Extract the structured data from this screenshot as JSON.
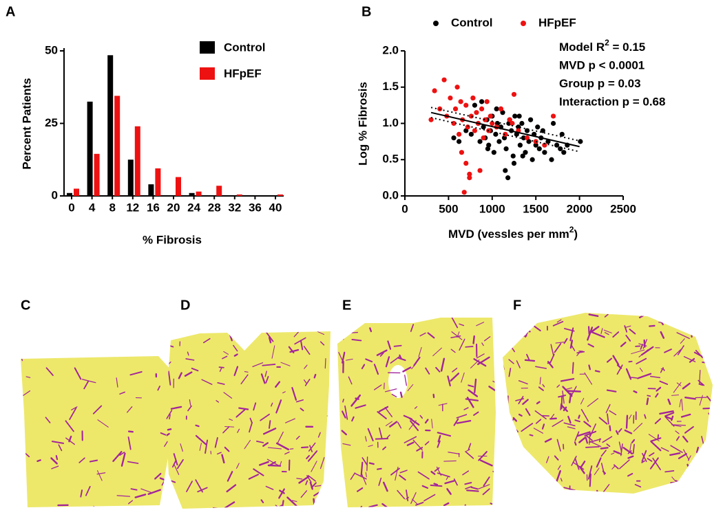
{
  "chart_data": [
    {
      "type": "bar",
      "label": "A",
      "xlabel": "% Fibrosis",
      "ylabel": "Percent Patients",
      "categories": [
        "0",
        "4",
        "8",
        "12",
        "16",
        "20",
        "24",
        "28",
        "32",
        "36",
        "40"
      ],
      "series": [
        {
          "name": "Control",
          "color": "#000000",
          "values": [
            1,
            32.5,
            48.5,
            12.5,
            4,
            0,
            1,
            0,
            0,
            0,
            0
          ]
        },
        {
          "name": "HFpEF",
          "color": "#ee1111",
          "values": [
            2.5,
            14.5,
            34.5,
            24,
            9.5,
            6.5,
            1.5,
            3.5,
            0.5,
            0,
            0.5
          ]
        }
      ],
      "ylim": [
        0,
        50
      ],
      "yticks": [
        0,
        25,
        50
      ],
      "legend": "top-right"
    },
    {
      "type": "scatter",
      "label": "B",
      "ylabel": "Log % Fibrosis",
      "xlabel": {
        "text": "MVD (vessles per mm",
        "sup": "2",
        "after": ")"
      },
      "series": [
        {
          "name": "Control",
          "color": "#000000",
          "x": [
            560,
            620,
            700,
            760,
            800,
            840,
            860,
            880,
            900,
            920,
            940,
            960,
            980,
            1000,
            1020,
            1040,
            1060,
            1080,
            1100,
            1120,
            1140,
            1160,
            1180,
            1200,
            1220,
            1240,
            1260,
            1280,
            1300,
            1320,
            1340,
            1360,
            1380,
            1400,
            1420,
            1440,
            1460,
            1480,
            1500,
            1520,
            1540,
            1560,
            1580,
            1600,
            1640,
            1680,
            1700,
            1740,
            1780,
            1800,
            1820,
            1860,
            2010,
            1150,
            1250,
            1350,
            1050,
            950,
            1190,
            1310
          ],
          "values": [
            0.8,
            0.75,
            0.9,
            0.85,
            1.25,
            1.0,
            0.75,
            1.3,
            0.95,
            0.8,
            1.05,
            0.7,
            0.9,
            1.1,
            0.6,
            0.85,
            1.0,
            0.75,
            0.95,
            1.15,
            0.8,
            0.65,
            0.25,
            1.05,
            0.9,
            0.55,
            1.1,
            0.85,
            0.95,
            0.7,
            1.0,
            0.8,
            0.6,
            0.9,
            0.75,
            1.05,
            0.5,
            0.85,
            0.7,
            0.95,
            0.65,
            0.8,
            0.9,
            0.6,
            0.75,
            0.5,
            1.0,
            0.7,
            0.65,
            0.85,
            0.6,
            0.7,
            0.75,
            0.35,
            0.45,
            0.55,
            1.2,
            0.65,
            1.0,
            1.1
          ]
        },
        {
          "name": "HFpEF",
          "color": "#ee1111",
          "x": [
            300,
            340,
            400,
            450,
            480,
            520,
            560,
            580,
            600,
            620,
            640,
            660,
            680,
            700,
            720,
            740,
            760,
            780,
            800,
            820,
            840,
            860,
            880,
            900,
            920,
            940,
            960,
            980,
            1000,
            1050,
            1100,
            1150,
            1200,
            1250,
            1300,
            1400,
            1500,
            1600,
            1700,
            650,
            700,
            740,
            780,
            1100,
            1230
          ],
          "values": [
            1.05,
            1.45,
            1.2,
            1.6,
            1.1,
            1.35,
            1.0,
            1.2,
            1.5,
            0.85,
            1.3,
            1.05,
            0.05,
            1.25,
            0.95,
            0.25,
            1.1,
            1.35,
            0.9,
            1.15,
            1.0,
            0.35,
            1.2,
            0.8,
            1.05,
            1.3,
            0.9,
            1.1,
            1.0,
            0.95,
            1.2,
            0.85,
            1.05,
            1.4,
            0.9,
            0.8,
            0.75,
            0.7,
            1.1,
            0.6,
            0.45,
            0.3,
            1.35,
            1.2,
            1.0
          ]
        }
      ],
      "fit": {
        "x": [
          300,
          2000
        ],
        "y": [
          1.15,
          0.68
        ]
      },
      "ci_upper": {
        "x": [
          300,
          2000
        ],
        "y": [
          1.22,
          0.76
        ]
      },
      "ci_lower": {
        "x": [
          300,
          2000
        ],
        "y": [
          1.08,
          0.61
        ]
      },
      "annotations": [
        {
          "text": "Model R",
          "sup": "2",
          "after": " = 0.15"
        },
        {
          "text": "MVD p < 0.0001"
        },
        {
          "text": "Group p = 0.03"
        },
        {
          "text": "Interaction p = 0.68"
        }
      ],
      "xlim": [
        0,
        2500
      ],
      "xticks": [
        0,
        500,
        1000,
        1500,
        2000,
        2500
      ],
      "ylim": [
        0,
        2
      ],
      "yticks": [
        {
          "value": 0,
          "label": "0.0"
        },
        {
          "value": 0.5,
          "label": "0.5"
        },
        {
          "value": 1,
          "label": "1.0"
        },
        {
          "value": 1.5,
          "label": "1.5"
        },
        {
          "value": 2,
          "label": "2.0"
        }
      ],
      "legend": "top"
    }
  ],
  "panels": [
    "C",
    "D",
    "E",
    "F"
  ]
}
